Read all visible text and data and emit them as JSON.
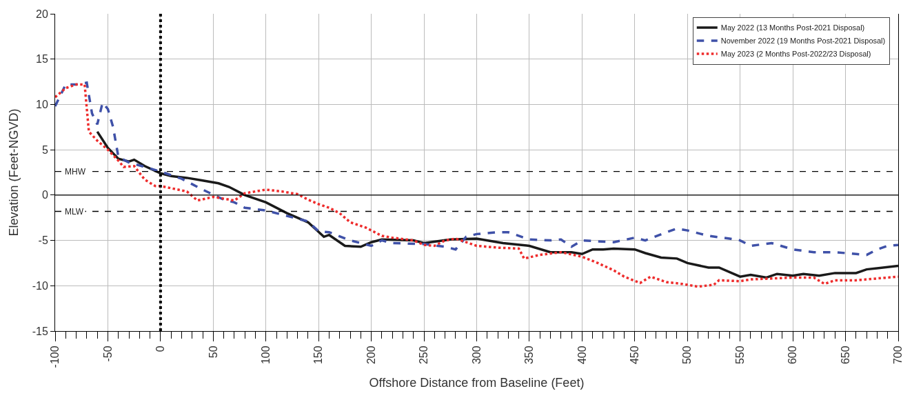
{
  "chart_data": {
    "type": "line",
    "xlabel": "Offshore Distance from Baseline (Feet)",
    "ylabel": "Elevation (Feet-NGVD)",
    "xlim": [
      -100,
      700
    ],
    "xticks": [
      -100,
      -50,
      0,
      50,
      100,
      150,
      200,
      250,
      300,
      350,
      400,
      450,
      500,
      550,
      600,
      650,
      700
    ],
    "ylim": [
      -15,
      20
    ],
    "yticks": [
      -15,
      -10,
      -5,
      0,
      5,
      10,
      15,
      20
    ],
    "grid": true,
    "legend": "top right",
    "marker": "none",
    "series": [
      {
        "name": "May 2022 (13 Months Post-2021 Disposal)",
        "color": "#1a1a1a",
        "line_style": "solid",
        "x": [
          -60,
          -50,
          -40,
          -30,
          -25,
          -15,
          0,
          10,
          25,
          40,
          55,
          65,
          80,
          100,
          120,
          140,
          155,
          160,
          175,
          190,
          200,
          210,
          240,
          250,
          275,
          300,
          325,
          350,
          370,
          390,
          400,
          410,
          420,
          430,
          450,
          460,
          475,
          490,
          500,
          520,
          530,
          550,
          560,
          575,
          585,
          600,
          610,
          625,
          640,
          660,
          670,
          700
        ],
        "values": [
          7,
          5.2,
          4.0,
          3.7,
          3.9,
          3.2,
          2.4,
          2.1,
          1.9,
          1.6,
          1.3,
          0.9,
          0,
          -0.8,
          -2,
          -3,
          -4.6,
          -4.4,
          -5.6,
          -5.7,
          -5.2,
          -4.9,
          -5.0,
          -5.3,
          -4.9,
          -4.8,
          -5.3,
          -5.6,
          -6.3,
          -6.3,
          -6.5,
          -6.0,
          -6.0,
          -5.9,
          -6.0,
          -6.4,
          -6.9,
          -7.0,
          -7.5,
          -8.0,
          -8.0,
          -9.0,
          -8.8,
          -9.1,
          -8.7,
          -8.9,
          -8.7,
          -8.9,
          -8.6,
          -8.6,
          -8.2,
          -7.8
        ]
      },
      {
        "name": "November 2022 (19 Months Post-2021 Disposal)",
        "color": "#3f51a8",
        "line_style": "dashed",
        "x": [
          -100,
          -90,
          -80,
          -70,
          -65,
          -60,
          -55,
          -50,
          -45,
          -40,
          -30,
          0,
          20,
          40,
          60,
          70,
          80,
          100,
          120,
          140,
          150,
          160,
          180,
          200,
          210,
          220,
          250,
          270,
          280,
          290,
          300,
          320,
          330,
          350,
          370,
          380,
          390,
          400,
          430,
          450,
          460,
          480,
          490,
          500,
          520,
          540,
          550,
          560,
          580,
          600,
          620,
          640,
          660,
          670,
          680,
          690,
          700
        ],
        "values": [
          9.8,
          12.2,
          12.2,
          12.4,
          9,
          7.8,
          10.2,
          9.5,
          7.5,
          4.2,
          3.6,
          2.6,
          1.8,
          0.6,
          -0.5,
          -0.8,
          -1.4,
          -1.7,
          -2.3,
          -2.9,
          -4.0,
          -4.1,
          -5.0,
          -5.6,
          -5.0,
          -5.3,
          -5.4,
          -5.7,
          -6.0,
          -4.6,
          -4.3,
          -4.1,
          -4.1,
          -4.9,
          -5.0,
          -4.9,
          -5.7,
          -5.0,
          -5.2,
          -4.7,
          -5.0,
          -4.1,
          -3.7,
          -3.9,
          -4.5,
          -4.8,
          -5.0,
          -5.6,
          -5.3,
          -6.0,
          -6.3,
          -6.3,
          -6.5,
          -6.6,
          -6.0,
          -5.6,
          -5.5
        ]
      },
      {
        "name": "May 2023 (2 Months Post-2022/23 Disposal)",
        "color": "#ee2c2c",
        "line_style": "dotted",
        "x": [
          -100,
          -90,
          -80,
          -72,
          -68,
          -60,
          -50,
          -40,
          -35,
          -25,
          -15,
          -5,
          0,
          25,
          35,
          50,
          60,
          70,
          80,
          100,
          115,
          130,
          140,
          150,
          160,
          170,
          180,
          195,
          210,
          220,
          240,
          250,
          260,
          270,
          280,
          290,
          300,
          320,
          340,
          345,
          360,
          380,
          400,
          415,
          430,
          440,
          455,
          465,
          480,
          495,
          510,
          525,
          530,
          550,
          560,
          600,
          620,
          630,
          640,
          660,
          700
        ],
        "values": [
          10.8,
          11.8,
          12.2,
          12.2,
          7.0,
          6.0,
          5.0,
          3.8,
          3.1,
          3.2,
          1.7,
          1.0,
          1.0,
          0.4,
          -0.6,
          -0.2,
          -0.4,
          -0.6,
          0.2,
          0.6,
          0.4,
          0.1,
          -0.5,
          -1.0,
          -1.4,
          -2.0,
          -3.0,
          -3.6,
          -4.5,
          -4.7,
          -5.0,
          -5.5,
          -5.6,
          -5.0,
          -4.8,
          -5.2,
          -5.6,
          -5.8,
          -5.9,
          -7.0,
          -6.6,
          -6.3,
          -6.8,
          -7.5,
          -8.3,
          -9.0,
          -9.7,
          -9.0,
          -9.6,
          -9.8,
          -10.1,
          -9.9,
          -9.4,
          -9.5,
          -9.3,
          -9.1,
          -9.1,
          -9.8,
          -9.4,
          -9.4,
          -9.0
        ]
      }
    ],
    "ref_lines": [
      {
        "axis": "y",
        "value": 2.6,
        "label": "MHW",
        "color": "#000000",
        "line_style": "dashed"
      },
      {
        "axis": "y",
        "value": -1.8,
        "label": "MLW",
        "color": "#000000",
        "line_style": "dashed"
      },
      {
        "axis": "y",
        "value": 0,
        "color": "#000000",
        "line_style": "solid"
      },
      {
        "axis": "x",
        "value": 0,
        "color": "#000000",
        "line_style": "dotted"
      }
    ]
  }
}
